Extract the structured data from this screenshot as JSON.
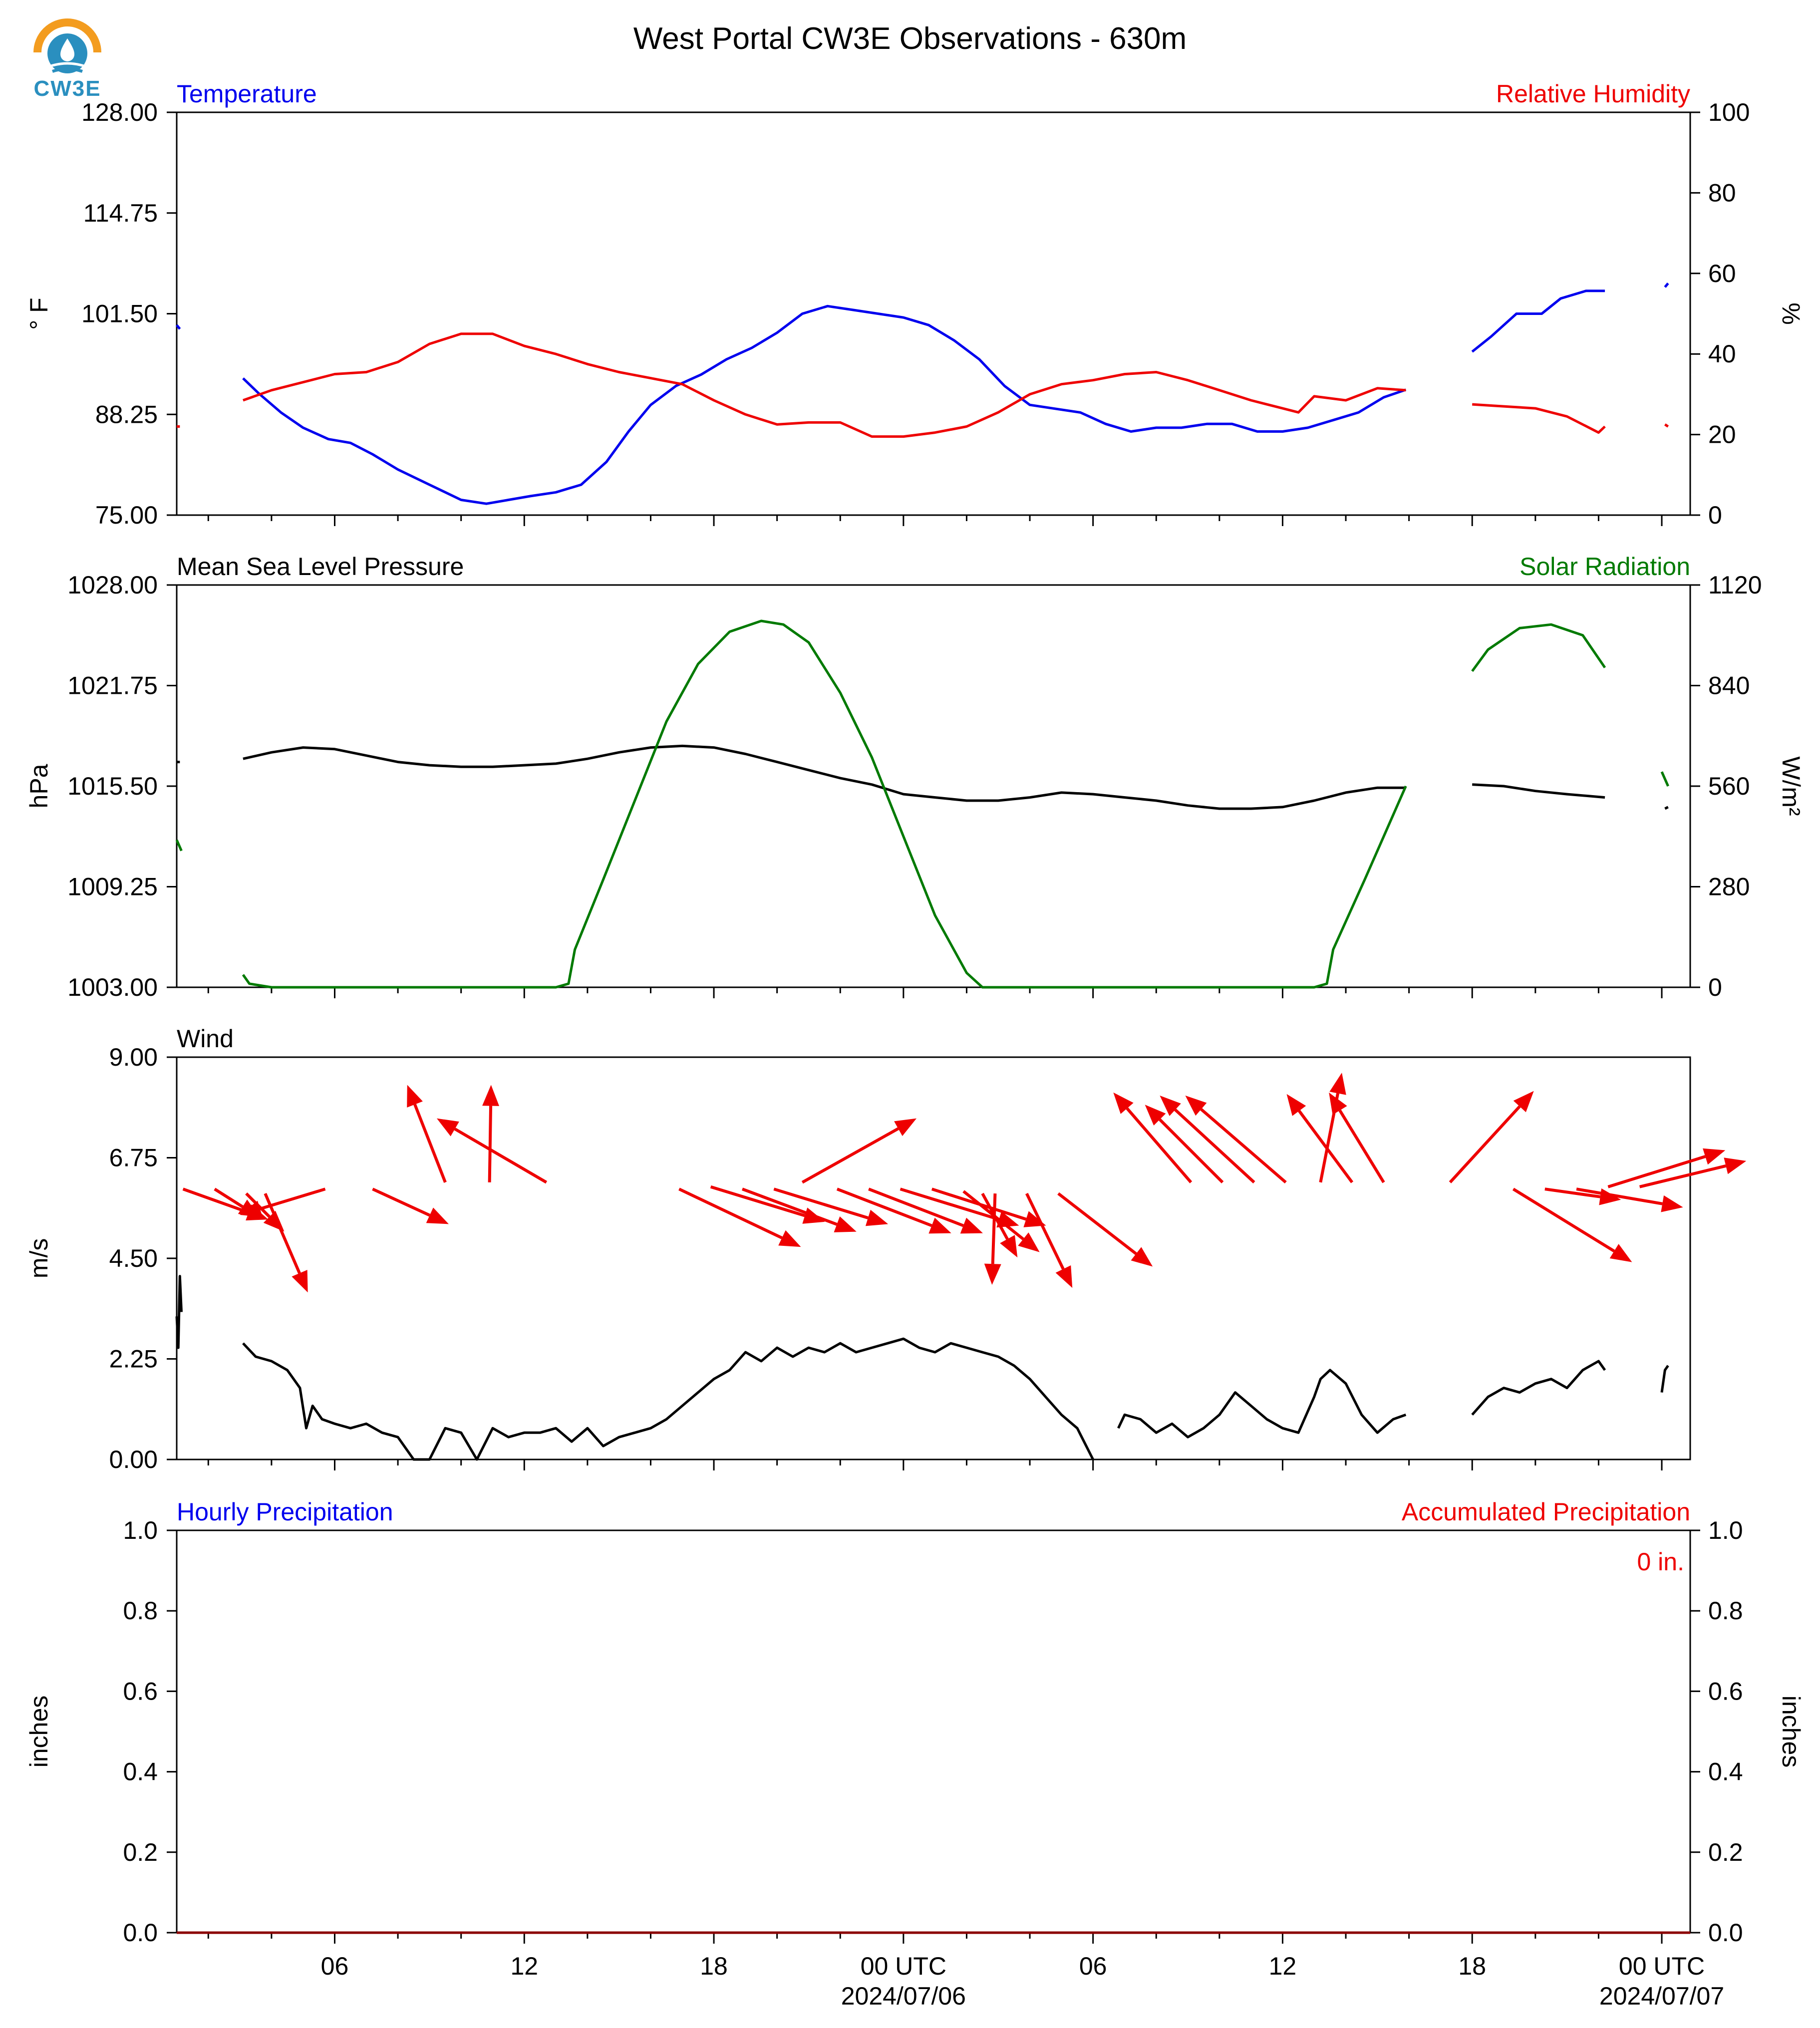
{
  "figure": {
    "title": "West Portal CW3E Observations - 630m",
    "logo_text": "CW3E",
    "colors": {
      "blue": "#0000ee",
      "red": "#ee0000",
      "green": "#007a00",
      "black": "#000000"
    }
  },
  "x_axis": {
    "ticks": [
      {
        "t": 6,
        "label": "06",
        "sub": ""
      },
      {
        "t": 12,
        "label": "12",
        "sub": ""
      },
      {
        "t": 18,
        "label": "18",
        "sub": ""
      },
      {
        "t": 24,
        "label": "00 UTC",
        "sub": "2024/07/06"
      },
      {
        "t": 30,
        "label": "06",
        "sub": ""
      },
      {
        "t": 36,
        "label": "12",
        "sub": ""
      },
      {
        "t": 42,
        "label": "18",
        "sub": ""
      },
      {
        "t": 48,
        "label": "00 UTC",
        "sub": "2024/07/07"
      }
    ],
    "range_hours": [
      1,
      48.9
    ]
  },
  "chart_data": [
    {
      "type": "line",
      "panel": "temperature-humidity",
      "left_title": "Temperature",
      "right_title": "Relative Humidity",
      "ylabel": "° F",
      "ylabel_right": "%",
      "ylim": [
        75,
        128
      ],
      "ylim_right": [
        0,
        100
      ],
      "yticks": [
        "75.00",
        "88.25",
        "101.50",
        "114.75",
        "128.00"
      ],
      "yticks_right": [
        "0",
        "20",
        "40",
        "60",
        "80",
        "100"
      ],
      "series": [
        {
          "name": "Temperature",
          "axis": "left",
          "color": "#0000ee",
          "x": [
            1.0,
            1.1,
            null,
            3.1,
            3.6,
            4.3,
            5.0,
            5.8,
            6.5,
            7.2,
            8.0,
            9.0,
            10.0,
            10.8,
            11.5,
            12.2,
            13.0,
            13.8,
            14.6,
            15.3,
            16.0,
            16.8,
            17.6,
            18.4,
            19.2,
            20.0,
            20.8,
            21.6,
            22.4,
            23.2,
            24.0,
            24.8,
            25.6,
            26.4,
            27.2,
            28.0,
            28.8,
            29.6,
            30.4,
            31.2,
            32.0,
            32.8,
            33.6,
            34.4,
            35.2,
            36.0,
            36.8,
            37.6,
            38.4,
            39.2,
            39.9,
            null,
            42.0,
            42.6,
            43.4,
            44.2,
            44.8,
            45.6,
            46.2,
            null,
            48.1,
            48.2
          ],
          "y": [
            100.0,
            99.5,
            null,
            93.0,
            91.0,
            88.5,
            86.5,
            85.0,
            84.5,
            83.0,
            81.0,
            79.0,
            77.0,
            76.5,
            77.0,
            77.5,
            78.0,
            79.0,
            82.0,
            86.0,
            89.5,
            92.0,
            93.5,
            95.5,
            97.0,
            99.0,
            101.5,
            102.5,
            102.0,
            101.5,
            101.0,
            100.0,
            98.0,
            95.5,
            92.0,
            89.5,
            89.0,
            88.5,
            87.0,
            86.0,
            86.5,
            86.5,
            87.0,
            87.0,
            86.0,
            86.0,
            86.5,
            87.5,
            88.5,
            90.5,
            91.5,
            null,
            96.5,
            98.5,
            101.5,
            101.5,
            103.5,
            104.5,
            104.5,
            null,
            105.0,
            105.5
          ]
        },
        {
          "name": "Relative Humidity",
          "axis": "right",
          "color": "#ee0000",
          "x": [
            1.0,
            1.1,
            null,
            3.1,
            4.0,
            5.0,
            6.0,
            7.0,
            8.0,
            9.0,
            10.0,
            11.0,
            12.0,
            13.0,
            14.0,
            15.0,
            16.0,
            17.0,
            18.0,
            19.0,
            20.0,
            21.0,
            22.0,
            23.0,
            24.0,
            25.0,
            26.0,
            27.0,
            28.0,
            29.0,
            30.0,
            31.0,
            32.0,
            33.0,
            34.0,
            35.0,
            36.0,
            36.5,
            37.0,
            38.0,
            39.0,
            39.9,
            null,
            42.0,
            43.0,
            44.0,
            45.0,
            46.0,
            46.2,
            null,
            48.1,
            48.2
          ],
          "y": [
            22.0,
            22.0,
            null,
            28.5,
            31.0,
            33.0,
            35.0,
            35.5,
            38.0,
            42.5,
            45.0,
            45.0,
            42.0,
            40.0,
            37.5,
            35.5,
            34.0,
            32.5,
            28.5,
            25.0,
            22.5,
            23.0,
            23.0,
            19.5,
            19.5,
            20.5,
            22.0,
            25.5,
            30.0,
            32.5,
            33.5,
            35.0,
            35.5,
            33.5,
            31.0,
            28.5,
            26.5,
            25.5,
            29.5,
            28.5,
            31.5,
            31.0,
            null,
            27.5,
            27.0,
            26.5,
            24.5,
            20.5,
            22.0,
            null,
            22.5,
            22.0
          ]
        }
      ]
    },
    {
      "type": "line",
      "panel": "pressure-solar",
      "left_title": "Mean Sea Level Pressure",
      "right_title": "Solar Radiation",
      "ylabel": "hPa",
      "ylabel_right": "W/m²",
      "ylim": [
        1003,
        1028
      ],
      "ylim_right": [
        0,
        1120
      ],
      "yticks": [
        "1003.00",
        "1009.25",
        "1015.50",
        "1021.75",
        "1028.00"
      ],
      "yticks_right": [
        "0",
        "280",
        "560",
        "840",
        "1120"
      ],
      "series": [
        {
          "name": "Mean Sea Level Pressure",
          "axis": "left",
          "color": "#000000",
          "x": [
            1.0,
            1.1,
            null,
            3.1,
            4.0,
            5.0,
            6.0,
            7.0,
            8.0,
            9.0,
            10.0,
            11.0,
            12.0,
            13.0,
            14.0,
            15.0,
            16.0,
            17.0,
            18.0,
            19.0,
            20.0,
            21.0,
            22.0,
            23.0,
            24.0,
            25.0,
            26.0,
            27.0,
            28.0,
            29.0,
            30.0,
            31.0,
            32.0,
            33.0,
            34.0,
            35.0,
            36.0,
            37.0,
            38.0,
            39.0,
            39.9,
            null,
            42.0,
            43.0,
            44.0,
            45.0,
            46.2,
            null,
            48.1,
            48.2
          ],
          "y": [
            1017.0,
            1017.0,
            null,
            1017.2,
            1017.6,
            1017.9,
            1017.8,
            1017.4,
            1017.0,
            1016.8,
            1016.7,
            1016.7,
            1016.8,
            1016.9,
            1017.2,
            1017.6,
            1017.9,
            1018.0,
            1017.9,
            1017.5,
            1017.0,
            1016.5,
            1016.0,
            1015.6,
            1015.0,
            1014.8,
            1014.6,
            1014.6,
            1014.8,
            1015.1,
            1015.0,
            1014.8,
            1014.6,
            1014.3,
            1014.1,
            1014.1,
            1014.2,
            1014.6,
            1015.1,
            1015.4,
            1015.4,
            null,
            1015.6,
            1015.5,
            1015.2,
            1015.0,
            1014.8,
            null,
            1014.1,
            1014.2
          ]
        },
        {
          "name": "Solar Radiation",
          "axis": "right",
          "color": "#007a00",
          "x": [
            1.0,
            1.15,
            null,
            3.1,
            3.3,
            4.0,
            8.0,
            12.0,
            13.0,
            13.4,
            13.6,
            14.5,
            15.5,
            16.5,
            17.5,
            18.5,
            19.5,
            20.2,
            21.0,
            22.0,
            23.0,
            24.0,
            25.0,
            26.0,
            26.5,
            27.0,
            32.0,
            36.0,
            37.0,
            37.4,
            37.6,
            38.6,
            39.9,
            null,
            42.0,
            42.5,
            43.5,
            44.5,
            45.5,
            46.2,
            null,
            48.0,
            48.2
          ],
          "y": [
            410.0,
            380.0,
            null,
            35.0,
            10.0,
            0.0,
            0.0,
            0.0,
            0.0,
            10.0,
            105.0,
            300.0,
            520.0,
            740.0,
            900.0,
            990.0,
            1020.0,
            1010.0,
            960.0,
            820.0,
            640.0,
            420.0,
            200.0,
            40.0,
            0.0,
            0.0,
            0.0,
            0.0,
            0.0,
            10.0,
            105.0,
            300.0,
            560.0,
            null,
            880.0,
            940.0,
            1000.0,
            1010.0,
            980.0,
            890.0,
            null,
            600.0,
            560.0
          ]
        }
      ]
    },
    {
      "type": "line",
      "panel": "wind",
      "left_title": "Wind",
      "ylabel": "m/s",
      "ylim": [
        0,
        9
      ],
      "yticks": [
        "0.00",
        "2.25",
        "4.50",
        "6.75",
        "9.00"
      ],
      "series": [
        {
          "name": "Wind speed",
          "axis": "left",
          "color": "#000000",
          "x": [
            1.0,
            1.05,
            1.1,
            1.15,
            null,
            3.1,
            3.5,
            4.0,
            4.5,
            4.9,
            5.1,
            5.3,
            5.6,
            6.0,
            6.5,
            7.0,
            7.5,
            8.0,
            8.5,
            9.0,
            9.5,
            10.0,
            10.5,
            11.0,
            11.5,
            12.0,
            12.5,
            13.0,
            13.5,
            14.0,
            14.5,
            15.0,
            15.5,
            16.0,
            16.5,
            17.0,
            17.5,
            18.0,
            18.5,
            19.0,
            19.5,
            20.0,
            20.5,
            21.0,
            21.5,
            22.0,
            22.5,
            23.0,
            23.5,
            24.0,
            24.5,
            25.0,
            25.5,
            26.0,
            26.5,
            27.0,
            27.5,
            28.0,
            28.5,
            29.0,
            29.5,
            30.0,
            null,
            30.8,
            31.0,
            31.5,
            32.0,
            32.5,
            33.0,
            33.5,
            34.0,
            34.5,
            35.0,
            35.5,
            36.0,
            36.5,
            37.0,
            37.2,
            37.5,
            38.0,
            38.5,
            39.0,
            39.5,
            39.9,
            null,
            42.0,
            42.5,
            43.0,
            43.5,
            44.0,
            44.5,
            45.0,
            45.5,
            46.0,
            46.2,
            null,
            48.0,
            48.1,
            48.2
          ],
          "y": [
            3.2,
            2.5,
            4.1,
            3.3,
            null,
            2.6,
            2.3,
            2.2,
            2.0,
            1.6,
            0.7,
            1.2,
            0.9,
            0.8,
            0.7,
            0.8,
            0.6,
            0.5,
            0.0,
            0.0,
            0.7,
            0.6,
            0.0,
            0.7,
            0.5,
            0.6,
            0.6,
            0.7,
            0.4,
            0.7,
            0.3,
            0.5,
            0.6,
            0.7,
            0.9,
            1.2,
            1.5,
            1.8,
            2.0,
            2.4,
            2.2,
            2.5,
            2.3,
            2.5,
            2.4,
            2.6,
            2.4,
            2.5,
            2.6,
            2.7,
            2.5,
            2.4,
            2.6,
            2.5,
            2.4,
            2.3,
            2.1,
            1.8,
            1.4,
            1.0,
            0.7,
            0.0,
            null,
            0.7,
            1.0,
            0.9,
            0.6,
            0.8,
            0.5,
            0.7,
            1.0,
            1.5,
            1.2,
            0.9,
            0.7,
            0.6,
            1.4,
            1.8,
            2.0,
            1.7,
            1.0,
            0.6,
            0.9,
            1.0,
            null,
            1.0,
            1.4,
            1.6,
            1.5,
            1.7,
            1.8,
            1.6,
            2.0,
            2.2,
            2.0,
            null,
            1.5,
            2.0,
            2.1
          ]
        }
      ],
      "vectors": [
        {
          "t": 1.2,
          "y": 6.05,
          "u": 0.56,
          "v": -0.2
        },
        {
          "t": 2.2,
          "y": 6.05,
          "u": 0.3,
          "v": -0.19
        },
        {
          "t": 3.2,
          "y": 5.95,
          "u": 0.25,
          "v": -0.25
        },
        {
          "t": 3.8,
          "y": 5.95,
          "u": 0.28,
          "v": -0.65
        },
        {
          "t": 5.7,
          "y": 6.05,
          "u": -0.56,
          "v": -0.17
        },
        {
          "t": 7.2,
          "y": 6.05,
          "u": 0.5,
          "v": -0.23
        },
        {
          "t": 9.5,
          "y": 6.2,
          "u": -0.25,
          "v": 0.64
        },
        {
          "t": 10.9,
          "y": 6.2,
          "u": 0.01,
          "v": 0.64
        },
        {
          "t": 12.7,
          "y": 6.2,
          "u": -0.72,
          "v": 0.42
        },
        {
          "t": 16.9,
          "y": 6.05,
          "u": 0.8,
          "v": -0.38
        },
        {
          "t": 17.9,
          "y": 6.1,
          "u": 0.75,
          "v": -0.23
        },
        {
          "t": 18.9,
          "y": 6.05,
          "u": 0.75,
          "v": -0.28
        },
        {
          "t": 19.9,
          "y": 6.05,
          "u": 0.75,
          "v": -0.23
        },
        {
          "t": 20.8,
          "y": 6.2,
          "u": 0.75,
          "v": 0.42
        },
        {
          "t": 21.9,
          "y": 6.05,
          "u": 0.75,
          "v": -0.29
        },
        {
          "t": 22.9,
          "y": 6.05,
          "u": 0.75,
          "v": -0.29
        },
        {
          "t": 23.9,
          "y": 6.05,
          "u": 0.78,
          "v": -0.24
        },
        {
          "t": 24.9,
          "y": 6.05,
          "u": 0.75,
          "v": -0.24
        },
        {
          "t": 25.9,
          "y": 6.0,
          "u": 0.5,
          "v": -0.4
        },
        {
          "t": 26.5,
          "y": 5.95,
          "u": 0.23,
          "v": -0.42
        },
        {
          "t": 26.9,
          "y": 5.95,
          "u": -0.02,
          "v": -0.6
        },
        {
          "t": 27.9,
          "y": 5.95,
          "u": 0.3,
          "v": -0.62
        },
        {
          "t": 28.9,
          "y": 5.95,
          "u": 0.62,
          "v": -0.48
        },
        {
          "t": 33.1,
          "y": 6.2,
          "u": -0.51,
          "v": 0.59
        },
        {
          "t": 34.1,
          "y": 6.2,
          "u": -0.51,
          "v": 0.51
        },
        {
          "t": 35.1,
          "y": 6.2,
          "u": -0.62,
          "v": 0.57
        },
        {
          "t": 36.1,
          "y": 6.2,
          "u": -0.66,
          "v": 0.57
        },
        {
          "t": 37.2,
          "y": 6.2,
          "u": 0.14,
          "v": 0.72
        },
        {
          "t": 38.2,
          "y": 6.2,
          "u": -0.43,
          "v": 0.58
        },
        {
          "t": 39.2,
          "y": 6.2,
          "u": -0.36,
          "v": 0.59
        },
        {
          "t": 41.3,
          "y": 6.2,
          "u": 0.55,
          "v": 0.6
        },
        {
          "t": 43.3,
          "y": 6.05,
          "u": 0.78,
          "v": -0.48
        },
        {
          "t": 44.3,
          "y": 6.05,
          "u": 0.5,
          "v": -0.07
        },
        {
          "t": 45.3,
          "y": 6.05,
          "u": 0.7,
          "v": -0.12
        },
        {
          "t": 46.3,
          "y": 6.1,
          "u": 0.77,
          "v": 0.24
        },
        {
          "t": 47.3,
          "y": 6.1,
          "u": 0.7,
          "v": 0.17
        }
      ]
    },
    {
      "type": "line",
      "panel": "precipitation",
      "left_title": "Hourly Precipitation",
      "right_title": "Accumulated Precipitation",
      "annotation": "0 in.",
      "ylabel": "inches",
      "ylabel_right": "inches",
      "ylim": [
        0,
        1
      ],
      "ylim_right": [
        0,
        1
      ],
      "yticks": [
        "0.0",
        "0.2",
        "0.4",
        "0.6",
        "0.8",
        "1.0"
      ],
      "yticks_right": [
        "0.0",
        "0.2",
        "0.4",
        "0.6",
        "0.8",
        "1.0"
      ],
      "series": [
        {
          "name": "Hourly Precipitation",
          "axis": "left",
          "color": "#0000ee",
          "x": [
            1.0,
            48.9
          ],
          "y": [
            0,
            0
          ]
        },
        {
          "name": "Accumulated Precipitation",
          "axis": "right",
          "color": "#8b0000",
          "x": [
            1.0,
            48.9
          ],
          "y": [
            0,
            0
          ]
        }
      ]
    }
  ]
}
